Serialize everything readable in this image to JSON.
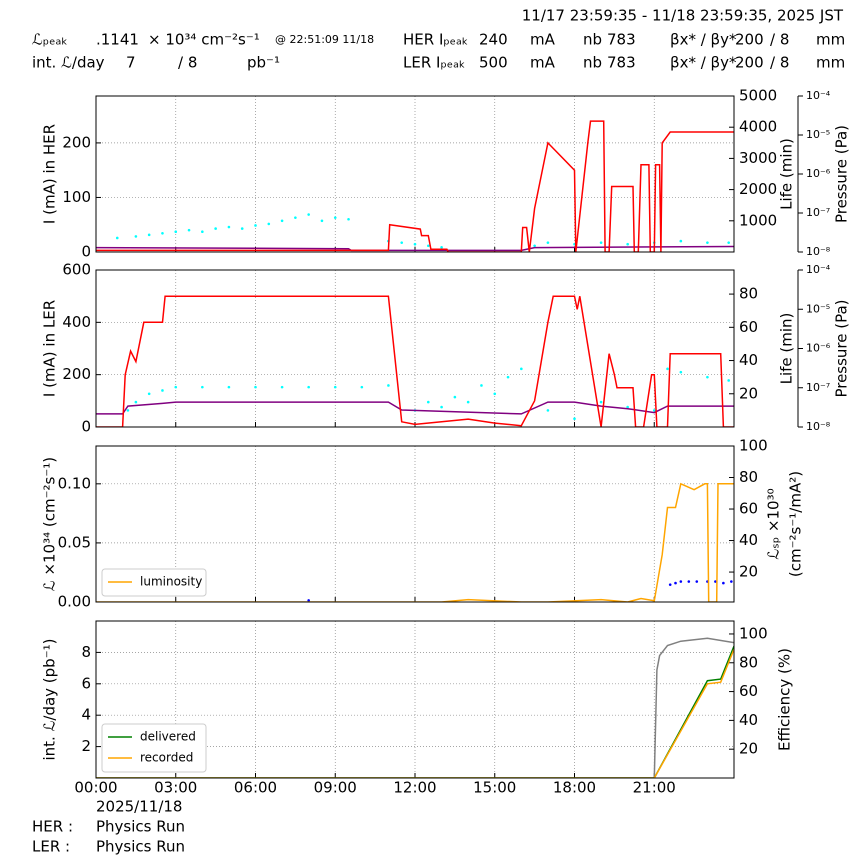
{
  "header": {
    "title": "11/17 23:59:35 - 11/18 23:59:35, 2025 JST",
    "row1": [
      "ℒₚₑₐₖ",
      ".1141",
      "× 10³⁴ cm⁻²s⁻¹",
      "@ 22:51:09 11/18",
      "HER Iₚₑₐₖ",
      "240",
      "mA",
      "nb",
      "783",
      "βx* / βy*",
      "200",
      "/ 8",
      "mm"
    ],
    "row2": [
      "int. ℒ/day",
      "7",
      "/ 8",
      "pb⁻¹",
      "LER Iₚₑₐₖ",
      "500",
      "mA",
      "nb",
      "783",
      "βx* / βy*",
      "200",
      "/ 8",
      "mm"
    ]
  },
  "footer": {
    "date": "2025/11/18",
    "rows": [
      [
        "HER :",
        "Physics Run"
      ],
      [
        "LER :",
        "Physics Run"
      ]
    ]
  },
  "chart_data": [
    {
      "type": "line",
      "ylabel": "I (mA) in HER",
      "y2label": [
        "Life (min)"
      ],
      "y3label": "Pressure (Pa)",
      "xlim": [
        0,
        24
      ],
      "ylim": [
        0,
        286
      ],
      "yticks": [
        0,
        100,
        200
      ],
      "y2lim": [
        0,
        5000
      ],
      "y2ticks": [
        1000,
        2000,
        3000,
        4000,
        5000
      ],
      "y3lim": [
        1e-08,
        0.0001
      ],
      "y3log": true,
      "y3ticks": [
        {
          "value": 1e-08,
          "label": "10⁻⁸"
        },
        {
          "value": 1e-07,
          "label": "10⁻⁷"
        },
        {
          "value": 1e-06,
          "label": "10⁻⁶"
        },
        {
          "value": 1e-05,
          "label": "10⁻⁵"
        },
        {
          "value": 0.0001,
          "label": "10⁻⁴"
        }
      ],
      "grid": true,
      "series": [
        {
          "color": "#00ffff",
          "mode": "markers",
          "axis": "y2",
          "x": [
            0.8,
            1.5,
            2,
            2.5,
            3,
            3.5,
            4,
            4.5,
            5,
            5.5,
            6,
            6.5,
            7,
            7.5,
            8,
            8.5,
            9,
            9.5,
            11,
            11.5,
            12,
            12.5,
            13,
            16.5,
            17,
            18,
            19,
            20,
            21,
            22,
            23,
            23.8
          ],
          "values": [
            450,
            500,
            550,
            600,
            650,
            700,
            650,
            750,
            800,
            750,
            850,
            900,
            1000,
            1100,
            1200,
            1000,
            1100,
            1050,
            350,
            300,
            250,
            200,
            150,
            200,
            300,
            250,
            300,
            250,
            300,
            350,
            300,
            300
          ]
        },
        {
          "color": "#800080",
          "mode": "line",
          "x": [
            0,
            9.5,
            9.6,
            11,
            16,
            16.5,
            24
          ],
          "values": [
            8,
            6,
            3,
            3,
            3,
            8,
            10
          ]
        },
        {
          "color": "#ff0000",
          "mode": "line",
          "x": [
            0,
            11,
            11.05,
            12.2,
            12.25,
            12.5,
            12.6,
            13.2,
            13.25,
            16.0,
            16.05,
            16.2,
            16.3,
            16.5,
            17.0,
            18.0,
            18.05,
            18.5,
            18.6,
            18.75,
            18.8,
            19.1,
            19.15,
            19.3,
            19.4,
            20.2,
            20.25,
            20.4,
            20.5,
            20.8,
            20.85,
            21.0,
            21.05,
            21.2,
            21.25,
            21.3,
            21.6,
            24
          ],
          "values": [
            3,
            3,
            50,
            42,
            30,
            30,
            5,
            5,
            0,
            0,
            45,
            45,
            0,
            80,
            200,
            150,
            0,
            200,
            240,
            240,
            240,
            240,
            0,
            0,
            120,
            120,
            0,
            0,
            160,
            160,
            0,
            0,
            160,
            160,
            0,
            200,
            220,
            220
          ]
        }
      ]
    },
    {
      "type": "line",
      "ylabel": "I (mA) in LER",
      "y2label": [
        "Life (min)"
      ],
      "y3label": "Pressure (Pa)",
      "xlim": [
        0,
        24
      ],
      "ylim": [
        0,
        600
      ],
      "yticks": [
        0,
        200,
        400,
        600
      ],
      "y2lim": [
        0,
        94.5
      ],
      "y2ticks": [
        20,
        40,
        60,
        80
      ],
      "y3lim": [
        1e-08,
        0.0001
      ],
      "y3log": true,
      "y3ticks": [
        {
          "value": 1e-08,
          "label": "10⁻⁸"
        },
        {
          "value": 1e-07,
          "label": "10⁻⁷"
        },
        {
          "value": 1e-06,
          "label": "10⁻⁶"
        },
        {
          "value": 1e-05,
          "label": "10⁻⁵"
        },
        {
          "value": 0.0001,
          "label": "10⁻⁴"
        }
      ],
      "grid": true,
      "series": [
        {
          "color": "#00ffff",
          "mode": "markers",
          "axis": "y2",
          "x": [
            1.2,
            1.5,
            2,
            2.5,
            3,
            4,
            5,
            6,
            7,
            8,
            9,
            10,
            11,
            12,
            12.5,
            13,
            13.5,
            14,
            14.5,
            15,
            15.5,
            16,
            17,
            18,
            19,
            20,
            21,
            21.5,
            22,
            23,
            23.8
          ],
          "values": [
            10,
            15,
            20,
            22,
            24,
            24,
            24,
            24,
            24,
            24,
            24,
            24,
            25,
            10,
            15,
            12,
            18,
            15,
            25,
            20,
            30,
            35,
            10,
            5,
            15,
            12,
            10,
            35,
            33,
            30,
            28
          ]
        },
        {
          "color": "#800080",
          "mode": "line",
          "x": [
            0,
            1,
            1.2,
            2.5,
            3,
            11,
            11.5,
            16,
            17,
            18,
            19,
            20,
            21,
            21.5,
            24
          ],
          "values": [
            50,
            50,
            80,
            90,
            95,
            95,
            65,
            50,
            95,
            95,
            80,
            70,
            55,
            80,
            80
          ]
        },
        {
          "color": "#ff0000",
          "mode": "line",
          "x": [
            0,
            1,
            1.1,
            1.3,
            1.5,
            1.8,
            1.9,
            2.5,
            2.6,
            11,
            11.5,
            12,
            13,
            14,
            15,
            16,
            16.5,
            17,
            17.2,
            18,
            18.1,
            18.2,
            19,
            19.3,
            19.5,
            19.6,
            20.2,
            20.3,
            20.6,
            20.9,
            21,
            21.1,
            21.5,
            21.6,
            23.5,
            23.6,
            24
          ],
          "values": [
            0,
            0,
            200,
            290,
            250,
            400,
            400,
            400,
            500,
            500,
            20,
            10,
            20,
            30,
            15,
            5,
            100,
            400,
            500,
            500,
            450,
            500,
            0,
            280,
            200,
            150,
            150,
            0,
            0,
            200,
            200,
            0,
            0,
            280,
            280,
            0,
            0
          ]
        }
      ]
    },
    {
      "type": "line",
      "ylabel": "ℒ ×10³⁴ (cm⁻²s⁻¹)",
      "y2label": [
        "ℒₛₚ ×10³⁰",
        "(cm⁻²s⁻¹/mA²)"
      ],
      "xlim": [
        0,
        24
      ],
      "ylim": [
        0,
        0.132
      ],
      "yticks": [
        {
          "value": 0,
          "label": "0.00"
        },
        {
          "value": 0.05,
          "label": "0.05"
        },
        {
          "value": 0.1,
          "label": "0.10"
        }
      ],
      "y2lim": [
        1,
        100
      ],
      "y2ticks": [
        20,
        40,
        60,
        80,
        100
      ],
      "grid": true,
      "legend": "lower left",
      "series": [
        {
          "color": "#0000ff",
          "mode": "markers",
          "axis": "y2",
          "x": [
            8,
            21.6,
            21.8,
            22,
            22.3,
            22.6,
            23,
            23.3,
            23.6,
            23.9
          ],
          "values": [
            2,
            12,
            13,
            14,
            14,
            14,
            14,
            14,
            13,
            14
          ]
        },
        {
          "name": "luminosity",
          "color": "#ffa500",
          "mode": "line",
          "x": [
            0,
            13,
            14,
            16,
            17,
            19,
            20,
            20.5,
            21,
            21.3,
            21.5,
            21.8,
            22,
            22.5,
            22.9,
            23.0,
            23.05,
            23.35,
            23.4,
            24
          ],
          "values": [
            0,
            0,
            0.002,
            0,
            0,
            0.002,
            0,
            0.003,
            0.001,
            0.04,
            0.08,
            0.08,
            0.1,
            0.095,
            0.1,
            0.1,
            0,
            0,
            0.1,
            0.1
          ]
        }
      ]
    },
    {
      "type": "line",
      "ylabel": "int. ℒ/day (pb⁻¹)",
      "y2label": [
        "Efficiency (%)"
      ],
      "xlim": [
        0,
        24
      ],
      "ylim": [
        0,
        10
      ],
      "yticks": [
        2,
        4,
        6,
        8
      ],
      "y2lim": [
        0,
        109
      ],
      "y2ticks": [
        20,
        40,
        60,
        80,
        100
      ],
      "xticks": [
        {
          "value": 0,
          "label": "00:00"
        },
        {
          "value": 3,
          "label": "03:00"
        },
        {
          "value": 6,
          "label": "06:00"
        },
        {
          "value": 9,
          "label": "09:00"
        },
        {
          "value": 12,
          "label": "12:00"
        },
        {
          "value": 15,
          "label": "15:00"
        },
        {
          "value": 18,
          "label": "18:00"
        },
        {
          "value": 21,
          "label": "21:00"
        }
      ],
      "grid": true,
      "legend": "lower left",
      "series": [
        {
          "color": "#808080",
          "mode": "line",
          "axis": "y2",
          "x": [
            21,
            21.1,
            21.2,
            21.5,
            22,
            23,
            24
          ],
          "values": [
            0,
            75,
            85,
            92,
            95,
            97,
            94
          ]
        },
        {
          "name": "delivered",
          "color": "#008000",
          "mode": "line",
          "x": [
            0,
            21,
            23,
            23.5,
            24
          ],
          "values": [
            0,
            0,
            6.2,
            6.3,
            8.4
          ]
        },
        {
          "name": "recorded",
          "color": "#ffa500",
          "mode": "line",
          "x": [
            0,
            21,
            23,
            23.5,
            24
          ],
          "values": [
            0,
            0,
            6.0,
            6.1,
            8.2
          ]
        }
      ]
    }
  ]
}
